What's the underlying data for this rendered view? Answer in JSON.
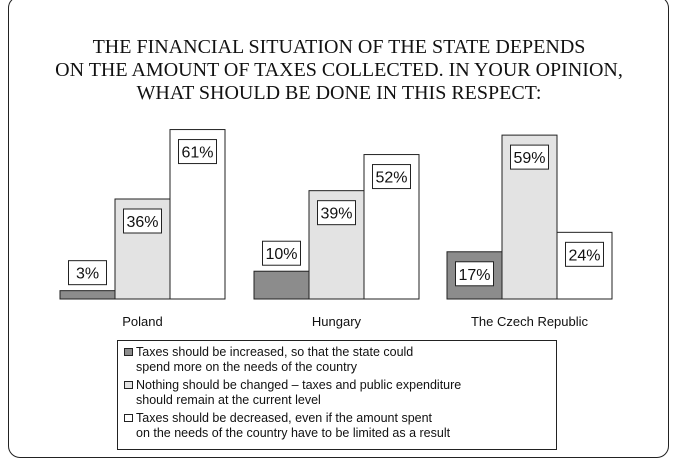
{
  "chart_data": {
    "type": "bar",
    "title": "THE FINANCIAL SITUATION OF THE STATE DEPENDS\nON THE AMOUNT OF TAXES COLLECTED.  IN YOUR OPINION,\nWHAT SHOULD BE DONE IN THIS RESPECT:",
    "categories": [
      "Poland",
      "Hungary",
      "The Czech Republic"
    ],
    "series": [
      {
        "name": "Taxes should be increased, so that the state could\nspend more on the needs of the country",
        "color": "#8c8c8c",
        "values": [
          3,
          10,
          17
        ],
        "labels": [
          "3%",
          "10%",
          "17%"
        ]
      },
      {
        "name": "Nothing should be changed – taxes and public expenditure\nshould remain at the current level",
        "color": "#e3e3e3",
        "values": [
          36,
          39,
          59
        ],
        "labels": [
          "36%",
          "39%",
          "59%"
        ]
      },
      {
        "name": "Taxes should be decreased, even if the amount spent\non the needs of the country have to be limited as a result",
        "color": "#ffffff",
        "values": [
          61,
          52,
          24
        ],
        "labels": [
          "61%",
          "52%",
          "24%"
        ]
      }
    ],
    "ylim": [
      0,
      63
    ],
    "grid": false,
    "legend_position": "bottom"
  }
}
